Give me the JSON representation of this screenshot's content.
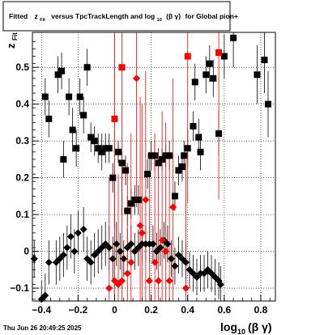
{
  "title_box": {
    "prefix": "Fitted",
    "var": "z",
    "var_sub": "Fit",
    "middle": "versus TpcTrackLength and log",
    "log_sub": "10",
    "paren": "(β γ)",
    "suffix": "for Global pion+"
  },
  "footer": {
    "timestamp": "Thu Jun 26 20:49:25 2025"
  },
  "chart_data": {
    "type": "scatter",
    "title": "Fitted z_Fit versus TpcTrackLength and log10(β γ) for Global pion+",
    "xlabel": "log10(β γ)",
    "ylabel": "z_Fit",
    "xlim": [
      -0.45,
      0.88
    ],
    "ylim": [
      -0.135,
      0.595
    ],
    "x_ticks": [
      -0.4,
      -0.2,
      0,
      0.2,
      0.4,
      0.6,
      0.8
    ],
    "x_tick_labels": [
      "−0.4",
      "−0.2",
      "0",
      "0.2",
      "0.4",
      "0.6",
      "0.8"
    ],
    "y_ticks": [
      -0.1,
      0,
      0.1,
      0.2,
      0.3,
      0.4,
      0.5
    ],
    "y_tick_labels": [
      "−0.1",
      "0",
      "0.1",
      "0.2",
      "0.3",
      "0.4",
      "0.5"
    ],
    "grid": true,
    "colors": {
      "black": "#000000",
      "red": "#ff0000"
    },
    "series": [
      {
        "marker": "square",
        "color": "#000000",
        "points": [
          [
            -0.38,
            0.42,
            0.05
          ],
          [
            -0.36,
            0.36,
            0.05
          ],
          [
            -0.31,
            0.48,
            0.05
          ],
          [
            -0.29,
            0.49,
            0.05
          ],
          [
            -0.28,
            0.25,
            0.05
          ],
          [
            -0.25,
            0.42,
            0.05
          ],
          [
            -0.23,
            0.33,
            0.06
          ],
          [
            -0.21,
            0.28,
            0.05
          ],
          [
            -0.19,
            0.42,
            0.05
          ],
          [
            -0.17,
            0.37,
            0.05
          ],
          [
            -0.15,
            0.5,
            0.05
          ],
          [
            -0.13,
            0.31,
            0.04
          ],
          [
            -0.11,
            0.3,
            0.04
          ],
          [
            -0.09,
            0.28,
            0.04
          ],
          [
            -0.07,
            0.27,
            0.05
          ],
          [
            -0.05,
            0.28,
            0.04
          ],
          [
            -0.03,
            0.28,
            0.04
          ],
          [
            -0.01,
            0.2,
            0.04
          ],
          [
            0.02,
            0.27,
            0.03
          ],
          [
            0.04,
            0.24,
            0.03
          ],
          [
            0.06,
            0.22,
            0.04
          ],
          [
            0.07,
            0.11,
            0.04
          ],
          [
            0.09,
            0.13,
            0.04
          ],
          [
            0.11,
            0.14,
            0.04
          ],
          [
            0.13,
            0.14,
            0.04
          ],
          [
            0.18,
            0.21,
            0.04
          ],
          [
            0.2,
            0.26,
            0.04
          ],
          [
            0.22,
            0.26,
            0.04
          ],
          [
            0.24,
            0.24,
            0.04
          ],
          [
            0.26,
            0.25,
            0.03
          ],
          [
            0.28,
            0.26,
            0.03
          ],
          [
            0.3,
            0.26,
            0.04
          ],
          [
            0.33,
            0.15,
            0.04
          ],
          [
            0.35,
            0.22,
            0.04
          ],
          [
            0.37,
            0.23,
            0.04
          ],
          [
            0.38,
            0.26,
            0.04
          ],
          [
            0.4,
            0.28,
            0.05
          ],
          [
            0.43,
            0.34,
            0.04
          ],
          [
            0.44,
            0.46,
            0.05
          ],
          [
            0.46,
            0.31,
            0.05
          ],
          [
            0.47,
            0.27,
            0.05
          ],
          [
            0.5,
            0.48,
            0.05
          ],
          [
            0.52,
            0.51,
            0.05
          ],
          [
            0.54,
            0.47,
            0.05
          ],
          [
            0.57,
            0.32,
            0.06
          ],
          [
            0.6,
            0.53,
            0.06
          ],
          [
            0.65,
            0.58,
            0.08
          ],
          [
            0.78,
            0.48,
            0.08
          ],
          [
            0.82,
            0.52,
            0.09
          ],
          [
            0.84,
            0.4,
            0.09
          ]
        ]
      },
      {
        "marker": "square",
        "color": "#ff0000",
        "points": [
          [
            0.0,
            0.36,
            0.3
          ],
          [
            0.04,
            0.5,
            0.4
          ],
          [
            0.4,
            0.53,
            0.4
          ],
          [
            0.57,
            0.54,
            0.4
          ]
        ]
      },
      {
        "marker": "diamond",
        "color": "#000000",
        "points": [
          [
            -0.44,
            -0.02,
            0.05
          ],
          [
            -0.4,
            -0.13,
            0.05
          ],
          [
            -0.38,
            -0.12,
            0.06
          ],
          [
            -0.36,
            -0.03,
            0.06
          ],
          [
            -0.32,
            -0.03,
            0.06
          ],
          [
            -0.3,
            -0.02,
            0.06
          ],
          [
            -0.28,
            -0.01,
            0.06
          ],
          [
            -0.26,
            0.01,
            0.06
          ],
          [
            -0.24,
            0.04,
            0.06
          ],
          [
            -0.22,
            0.0,
            0.06
          ],
          [
            -0.2,
            0.05,
            0.06
          ],
          [
            -0.17,
            0.06,
            0.06
          ],
          [
            -0.15,
            -0.02,
            0.06
          ],
          [
            -0.13,
            -0.03,
            0.06
          ],
          [
            -0.11,
            -0.01,
            0.06
          ],
          [
            -0.09,
            0.0,
            0.06
          ],
          [
            -0.07,
            0.01,
            0.06
          ],
          [
            -0.05,
            0.02,
            0.06
          ],
          [
            -0.03,
            0.01,
            0.06
          ],
          [
            -0.01,
            -0.02,
            0.06
          ],
          [
            0.01,
            0.02,
            0.06
          ],
          [
            0.03,
            0.0,
            0.05
          ],
          [
            0.05,
            -0.02,
            0.05
          ],
          [
            0.07,
            0.01,
            0.05
          ],
          [
            0.09,
            0.02,
            0.05
          ],
          [
            0.11,
            0.0,
            0.05
          ],
          [
            0.13,
            0.01,
            0.05
          ],
          [
            0.15,
            0.02,
            0.05
          ],
          [
            0.17,
            0.02,
            0.05
          ],
          [
            0.19,
            0.02,
            0.05
          ],
          [
            0.21,
            0.02,
            0.05
          ],
          [
            0.23,
            0.0,
            0.05
          ],
          [
            0.25,
            0.01,
            0.05
          ],
          [
            0.27,
            0.03,
            0.05
          ],
          [
            0.29,
            0.02,
            0.05
          ],
          [
            0.31,
            -0.02,
            0.05
          ],
          [
            0.33,
            -0.04,
            0.05
          ],
          [
            0.35,
            -0.01,
            0.05
          ],
          [
            0.37,
            -0.02,
            0.05
          ],
          [
            0.39,
            -0.03,
            0.05
          ],
          [
            0.41,
            -0.05,
            0.05
          ],
          [
            0.43,
            -0.06,
            0.05
          ],
          [
            0.45,
            -0.07,
            0.05
          ],
          [
            0.47,
            -0.06,
            0.05
          ],
          [
            0.49,
            -0.06,
            0.05
          ],
          [
            0.51,
            -0.05,
            0.05
          ],
          [
            0.53,
            -0.06,
            0.05
          ],
          [
            0.55,
            -0.07,
            0.05
          ],
          [
            0.57,
            -0.08,
            0.05
          ],
          [
            0.58,
            -0.09,
            0.05
          ]
        ]
      },
      {
        "marker": "diamond",
        "color": "#ff0000",
        "points": [
          [
            -0.03,
            -0.1,
            0.3
          ],
          [
            0.0,
            -0.08,
            0.3
          ],
          [
            0.02,
            -0.09,
            0.3
          ],
          [
            0.04,
            -0.08,
            0.3
          ],
          [
            0.07,
            -0.06,
            0.3
          ],
          [
            0.09,
            -0.03,
            0.35
          ],
          [
            0.12,
            0.47,
            0.35
          ],
          [
            0.14,
            0.07,
            0.35
          ],
          [
            0.15,
            0.05,
            0.35
          ],
          [
            0.17,
            0.14,
            0.35
          ],
          [
            0.19,
            -0.08,
            0.35
          ],
          [
            0.22,
            -0.03,
            0.35
          ],
          [
            0.24,
            -0.08,
            0.35
          ],
          [
            0.26,
            0.03,
            0.35
          ],
          [
            0.28,
            0.0,
            0.35
          ],
          [
            0.3,
            -0.08,
            0.35
          ],
          [
            0.32,
            0.12,
            0.35
          ],
          [
            0.39,
            -0.1,
            0.35
          ]
        ]
      }
    ]
  }
}
